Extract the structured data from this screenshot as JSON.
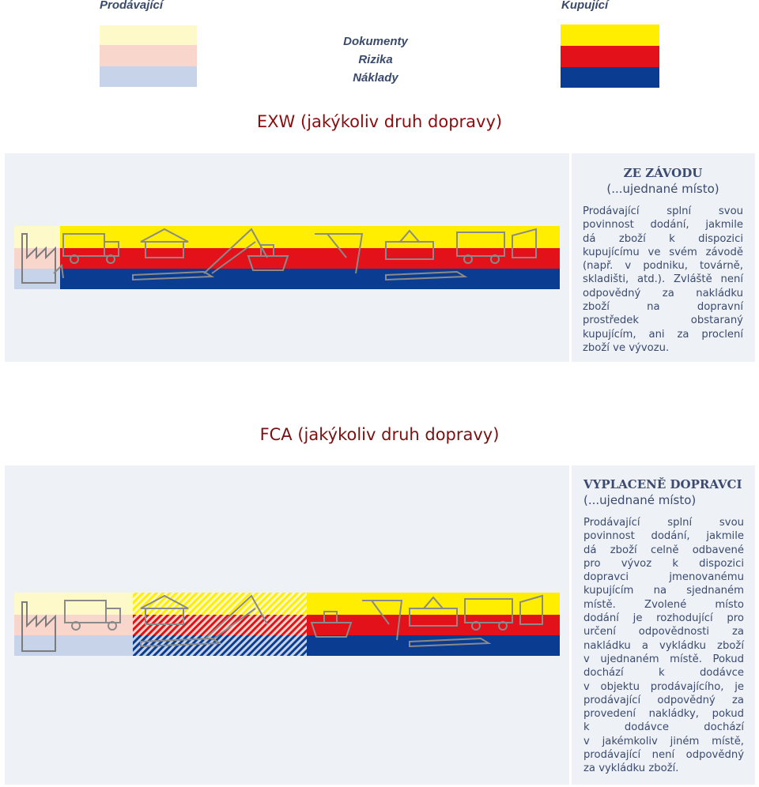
{
  "legend": {
    "seller_label": "Prodávající",
    "buyer_label": "Kupující",
    "items": [
      "Dokumenty",
      "Rizika",
      "Náklady"
    ],
    "seller_colors": [
      "#fdf9c8",
      "#f9d6cb",
      "#c6d3e8"
    ],
    "buyer_colors": [
      "#ffee00",
      "#e3121a",
      "#0a3d91"
    ]
  },
  "exw": {
    "title": "EXW (jakýkoliv druh dopravy)",
    "title_color": "#8b0d0d",
    "heading": "ZE ZÁVODU",
    "subheading": "(...ujednané místo)",
    "lines": [
      "Prodávající splní svou",
      "povinnost dodání, jakmile",
      "dá zboží k dispozici",
      "kupujícímu ve svém závodě",
      "(např. v podniku, továrně,",
      "skladišti, atd.). Zvláště není",
      "odpovědný za nakládku",
      "zboží na dopravní",
      "prostředek obstaraný",
      "kupujícím, ani za proclení",
      "zboží ve vývozu."
    ]
  },
  "fca": {
    "title": "FCA (jakýkoliv druh dopravy)",
    "title_color": "#7a1010",
    "heading": "VYPLACENĚ DOPRAVCI",
    "subheading": "(...ujednané místo)",
    "lines": [
      "Prodávající splní svou",
      "povinnost dodání, jakmile",
      "dá zboží celně odbavené",
      "pro vývoz k dispozici",
      "dopravci jmenovanému",
      "kupujícím na sjednaném",
      "místě. Zvolené místo",
      "dodání je rozhodující pro",
      "určení odpovědnosti za",
      "nakládku a vykládku zboží",
      "v ujednaném místě. Pokud",
      "dochází k dodávce",
      "v objektu prodávajícího, je",
      "prodávající odpovědný za",
      "provedení nakládky, pokud",
      "k dodávce dochází",
      "v jakémkoliv jiném místě,",
      "prodávající není odpovědný",
      "za vykládku zboží."
    ]
  }
}
